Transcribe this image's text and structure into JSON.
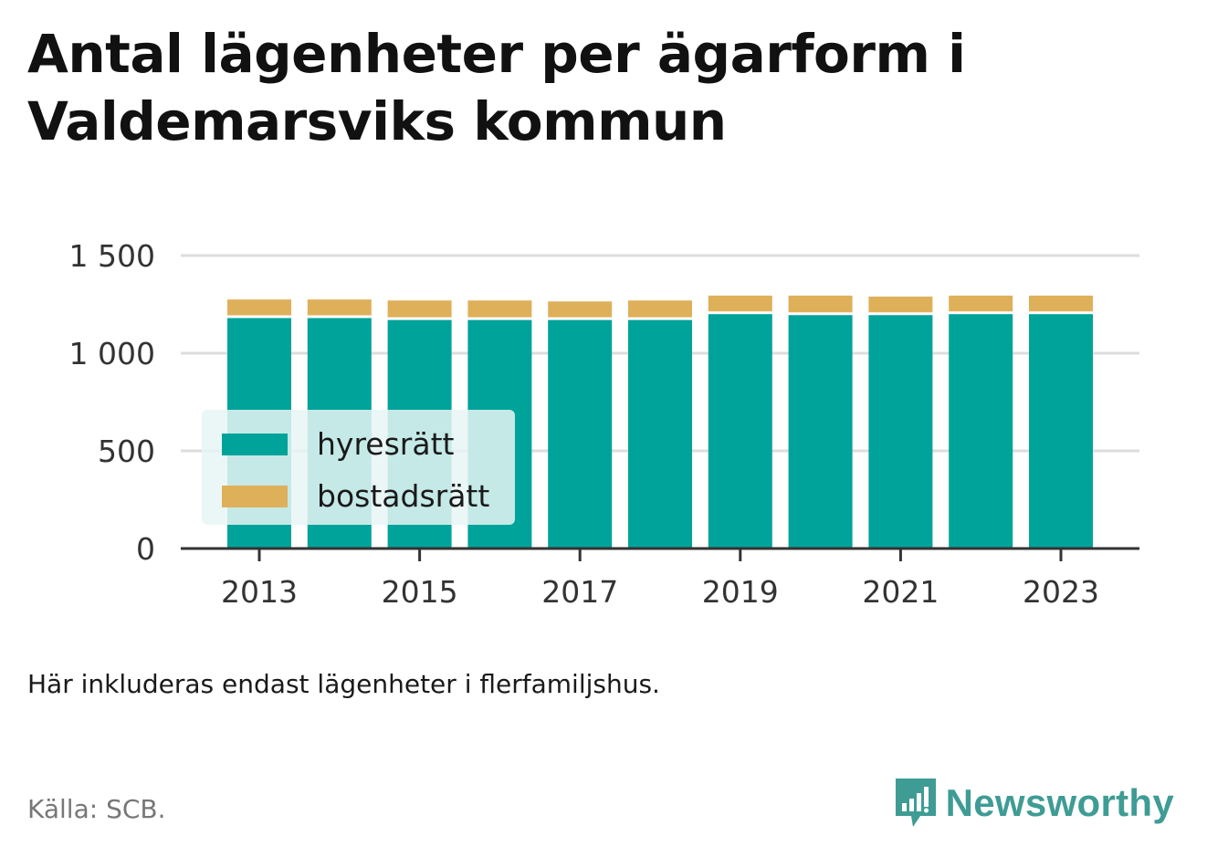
{
  "title": "Antal lägenheter per ägarform i Valdemarsviks kommun",
  "note": "Här inkluderas endast lägenheter i flerfamiljshus.",
  "source": "Källa: SCB.",
  "brand": {
    "name": "Newsworthy",
    "icon": "newsworthy-logo-icon",
    "color": "#3f9c95"
  },
  "colors": {
    "hyresratt": "#00a39a",
    "bostadsratt": "#dfb05a",
    "grid": "#dddddd",
    "axis": "#333333"
  },
  "chart_data": {
    "type": "bar",
    "stacked": true,
    "categories": [
      "2013",
      "2014",
      "2015",
      "2016",
      "2017",
      "2018",
      "2019",
      "2020",
      "2021",
      "2022",
      "2023"
    ],
    "x_tick_labels": [
      "2013",
      "2015",
      "2017",
      "2019",
      "2021",
      "2023"
    ],
    "series": [
      {
        "name": "hyresrätt",
        "values": [
          1180,
          1180,
          1170,
          1170,
          1170,
          1170,
          1200,
          1195,
          1195,
          1200,
          1200
        ]
      },
      {
        "name": "bostadsrätt",
        "values": [
          95,
          95,
          100,
          100,
          95,
          100,
          95,
          100,
          95,
          95,
          95
        ]
      }
    ],
    "ylim": [
      0,
      1500
    ],
    "y_ticks": [
      0,
      500,
      1000,
      1500
    ],
    "y_tick_labels": [
      "0",
      "500",
      "1 000",
      "1 500"
    ],
    "grid": true,
    "legend": {
      "position": "left",
      "entries": [
        "hyresrätt",
        "bostadsrätt"
      ]
    },
    "xlabel": "",
    "ylabel": ""
  }
}
